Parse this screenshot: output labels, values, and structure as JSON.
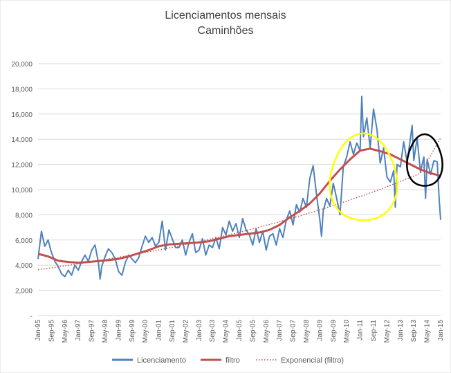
{
  "chart_data": {
    "type": "line",
    "title": "Licenciamentos mensais",
    "subtitle": "Caminhões",
    "ylim": [
      0,
      20000
    ],
    "yticks": [
      {
        "value": 0,
        "label": "-"
      },
      {
        "value": 2000,
        "label": "2,000"
      },
      {
        "value": 4000,
        "label": "4,000"
      },
      {
        "value": 6000,
        "label": "6,000"
      },
      {
        "value": 8000,
        "label": "8,000"
      },
      {
        "value": 10000,
        "label": "10,000"
      },
      {
        "value": 12000,
        "label": "12,000"
      },
      {
        "value": 14000,
        "label": "14,000"
      },
      {
        "value": 16000,
        "label": "16,000"
      },
      {
        "value": 18000,
        "label": "18,000"
      },
      {
        "value": 20000,
        "label": "20,000"
      }
    ],
    "x_start": "1995-01",
    "x_end": "2015-01",
    "xtick_labels": [
      "Jan-95",
      "Sep-95",
      "May-96",
      "Jan-97",
      "Sep-97",
      "May-98",
      "Jan-99",
      "Sep-99",
      "May-00",
      "Jan-01",
      "Sep-01",
      "May-02",
      "Jan-03",
      "Sep-03",
      "May-04",
      "Jan-05",
      "Sep-05",
      "May-06",
      "Jan-07",
      "Sep-07",
      "May-08",
      "Jan-09",
      "Sep-09",
      "May-10",
      "Jan-11",
      "Sep-11",
      "May-12",
      "Jan-13",
      "Sep-13",
      "May-14",
      "Jan-15"
    ],
    "legend": {
      "position": "bottom",
      "entries": [
        "Licenciamento",
        "filtro",
        "Exponencial (filtro)"
      ]
    },
    "grid": true,
    "series": [
      {
        "name": "Licenciamento",
        "color": "#4f81bd",
        "style": "solid",
        "points": [
          [
            "1995-01",
            4500
          ],
          [
            "1995-03",
            6700
          ],
          [
            "1995-05",
            5500
          ],
          [
            "1995-07",
            6000
          ],
          [
            "1995-09",
            5000
          ],
          [
            "1995-11",
            4300
          ],
          [
            "1996-01",
            3900
          ],
          [
            "1996-03",
            3300
          ],
          [
            "1996-05",
            3100
          ],
          [
            "1996-07",
            3600
          ],
          [
            "1996-09",
            3200
          ],
          [
            "1996-11",
            4000
          ],
          [
            "1997-01",
            3600
          ],
          [
            "1997-03",
            4300
          ],
          [
            "1997-05",
            4800
          ],
          [
            "1997-07",
            4300
          ],
          [
            "1997-09",
            5200
          ],
          [
            "1997-11",
            5600
          ],
          [
            "1998-01",
            4200
          ],
          [
            "1998-02",
            2900
          ],
          [
            "1998-03",
            3900
          ],
          [
            "1998-05",
            4700
          ],
          [
            "1998-07",
            5300
          ],
          [
            "1998-09",
            5000
          ],
          [
            "1998-11",
            4500
          ],
          [
            "1999-01",
            3500
          ],
          [
            "1999-03",
            3200
          ],
          [
            "1999-05",
            4200
          ],
          [
            "1999-07",
            4800
          ],
          [
            "1999-09",
            4500
          ],
          [
            "1999-11",
            4200
          ],
          [
            "2000-01",
            4600
          ],
          [
            "2000-03",
            5500
          ],
          [
            "2000-05",
            6300
          ],
          [
            "2000-07",
            5800
          ],
          [
            "2000-09",
            6200
          ],
          [
            "2000-11",
            5500
          ],
          [
            "2001-01",
            5800
          ],
          [
            "2001-03",
            7500
          ],
          [
            "2001-05",
            5200
          ],
          [
            "2001-07",
            6800
          ],
          [
            "2001-09",
            6100
          ],
          [
            "2001-11",
            5400
          ],
          [
            "2002-01",
            5400
          ],
          [
            "2002-03",
            6000
          ],
          [
            "2002-05",
            4800
          ],
          [
            "2002-07",
            5800
          ],
          [
            "2002-09",
            6500
          ],
          [
            "2002-11",
            5000
          ],
          [
            "2003-01",
            5200
          ],
          [
            "2003-03",
            6100
          ],
          [
            "2003-05",
            4800
          ],
          [
            "2003-07",
            5600
          ],
          [
            "2003-09",
            5400
          ],
          [
            "2003-11",
            6200
          ],
          [
            "2004-01",
            5300
          ],
          [
            "2004-03",
            7000
          ],
          [
            "2004-05",
            6400
          ],
          [
            "2004-07",
            7500
          ],
          [
            "2004-09",
            6700
          ],
          [
            "2004-11",
            7300
          ],
          [
            "2005-01",
            6200
          ],
          [
            "2005-03",
            7700
          ],
          [
            "2005-05",
            6800
          ],
          [
            "2005-07",
            6400
          ],
          [
            "2005-09",
            5600
          ],
          [
            "2005-11",
            6900
          ],
          [
            "2006-01",
            5800
          ],
          [
            "2006-03",
            6700
          ],
          [
            "2006-05",
            5200
          ],
          [
            "2006-07",
            6300
          ],
          [
            "2006-09",
            6500
          ],
          [
            "2006-11",
            5600
          ],
          [
            "2007-01",
            6900
          ],
          [
            "2007-03",
            6200
          ],
          [
            "2007-05",
            7600
          ],
          [
            "2007-07",
            8300
          ],
          [
            "2007-09",
            7200
          ],
          [
            "2007-11",
            8800
          ],
          [
            "2008-01",
            8200
          ],
          [
            "2008-03",
            9300
          ],
          [
            "2008-05",
            8600
          ],
          [
            "2008-07",
            10900
          ],
          [
            "2008-09",
            11900
          ],
          [
            "2008-11",
            9600
          ],
          [
            "2009-01",
            7600
          ],
          [
            "2009-02",
            6300
          ],
          [
            "2009-03",
            8300
          ],
          [
            "2009-05",
            9300
          ],
          [
            "2009-07",
            8700
          ],
          [
            "2009-09",
            10500
          ],
          [
            "2009-11",
            9300
          ],
          [
            "2010-01",
            8000
          ],
          [
            "2010-03",
            11800
          ],
          [
            "2010-05",
            12600
          ],
          [
            "2010-07",
            13800
          ],
          [
            "2010-09",
            12800
          ],
          [
            "2010-11",
            13700
          ],
          [
            "2011-01",
            13100
          ],
          [
            "2011-02",
            17400
          ],
          [
            "2011-03",
            14200
          ],
          [
            "2011-05",
            15700
          ],
          [
            "2011-07",
            13300
          ],
          [
            "2011-09",
            16400
          ],
          [
            "2011-11",
            14800
          ],
          [
            "2012-01",
            12100
          ],
          [
            "2012-03",
            13300
          ],
          [
            "2012-05",
            11000
          ],
          [
            "2012-07",
            10600
          ],
          [
            "2012-09",
            11500
          ],
          [
            "2012-10",
            8600
          ],
          [
            "2012-11",
            12000
          ],
          [
            "2013-01",
            11800
          ],
          [
            "2013-03",
            13800
          ],
          [
            "2013-05",
            12200
          ],
          [
            "2013-07",
            14100
          ],
          [
            "2013-08",
            15100
          ],
          [
            "2013-09",
            12300
          ],
          [
            "2013-11",
            14100
          ],
          [
            "2014-01",
            11400
          ],
          [
            "2014-03",
            12600
          ],
          [
            "2014-04",
            9300
          ],
          [
            "2014-05",
            12400
          ],
          [
            "2014-07",
            11200
          ],
          [
            "2014-09",
            12300
          ],
          [
            "2014-11",
            12200
          ],
          [
            "2014-12",
            9500
          ],
          [
            "2015-01",
            7600
          ]
        ]
      },
      {
        "name": "filtro",
        "color": "#c0504d",
        "style": "solid",
        "points": [
          [
            "1995-01",
            4900
          ],
          [
            "1995-07",
            4700
          ],
          [
            "1996-01",
            4350
          ],
          [
            "1996-07",
            4250
          ],
          [
            "1997-01",
            4200
          ],
          [
            "1997-07",
            4250
          ],
          [
            "1998-01",
            4330
          ],
          [
            "1998-07",
            4400
          ],
          [
            "1999-01",
            4500
          ],
          [
            "1999-07",
            4700
          ],
          [
            "2000-01",
            4950
          ],
          [
            "2000-07",
            5200
          ],
          [
            "2001-01",
            5500
          ],
          [
            "2001-07",
            5650
          ],
          [
            "2002-01",
            5700
          ],
          [
            "2002-07",
            5750
          ],
          [
            "2003-01",
            5800
          ],
          [
            "2003-07",
            5900
          ],
          [
            "2004-01",
            6100
          ],
          [
            "2004-07",
            6300
          ],
          [
            "2005-01",
            6400
          ],
          [
            "2005-07",
            6500
          ],
          [
            "2006-01",
            6600
          ],
          [
            "2006-07",
            6800
          ],
          [
            "2007-01",
            7200
          ],
          [
            "2007-07",
            7800
          ],
          [
            "2008-01",
            8300
          ],
          [
            "2008-07",
            8900
          ],
          [
            "2009-01",
            9700
          ],
          [
            "2009-07",
            10700
          ],
          [
            "2010-01",
            11600
          ],
          [
            "2010-07",
            12400
          ],
          [
            "2011-01",
            13100
          ],
          [
            "2011-07",
            13250
          ],
          [
            "2012-01",
            13050
          ],
          [
            "2012-07",
            12800
          ],
          [
            "2013-01",
            12400
          ],
          [
            "2013-07",
            12000
          ],
          [
            "2014-01",
            11600
          ],
          [
            "2014-07",
            11300
          ],
          [
            "2015-01",
            11100
          ]
        ]
      },
      {
        "name": "Exponencial (filtro)",
        "color": "#c0504d",
        "style": "dotted",
        "points": [
          [
            "1995-01",
            3650
          ],
          [
            "1996-01",
            3870
          ],
          [
            "1997-01",
            4110
          ],
          [
            "1998-01",
            4360
          ],
          [
            "1999-01",
            4630
          ],
          [
            "2000-01",
            4910
          ],
          [
            "2001-01",
            5210
          ],
          [
            "2002-01",
            5530
          ],
          [
            "2003-01",
            5870
          ],
          [
            "2004-01",
            6230
          ],
          [
            "2005-01",
            6610
          ],
          [
            "2006-01",
            7020
          ],
          [
            "2007-01",
            7450
          ],
          [
            "2008-01",
            7910
          ],
          [
            "2009-01",
            8390
          ],
          [
            "2010-01",
            8910
          ],
          [
            "2011-01",
            9450
          ],
          [
            "2012-01",
            10030
          ],
          [
            "2013-01",
            10650
          ],
          [
            "2014-01",
            11300
          ],
          [
            "2015-01",
            14100
          ]
        ]
      }
    ],
    "annotations": [
      {
        "shape": "freehand-ellipse",
        "color": "#ffff00",
        "x_range": [
          "2009-07",
          "2012-11"
        ],
        "y_range": [
          7400,
          14300
        ]
      },
      {
        "shape": "freehand-ellipse",
        "color": "#000000",
        "x_range": [
          "2013-05",
          "2015-02"
        ],
        "y_range": [
          10200,
          14300
        ]
      }
    ]
  }
}
